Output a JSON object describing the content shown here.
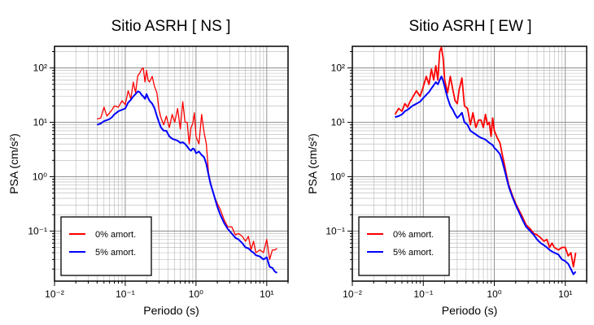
{
  "chart_data": [
    {
      "type": "line",
      "title": "Sitio ASRH [ NS ]",
      "xlabel": "Periodo (s)",
      "ylabel": "PSA (cm/s²)",
      "x_scale": "log",
      "y_scale": "log",
      "xlim": [
        0.01,
        20
      ],
      "ylim": [
        0.012,
        250
      ],
      "grid": true,
      "legend_position": "bottom-left",
      "x_tick_labels": [
        "10⁻²",
        "10⁻¹",
        "10⁰",
        "10¹"
      ],
      "y_tick_labels": [
        "10²",
        "10¹",
        "10⁰",
        "10⁻¹"
      ],
      "series": [
        {
          "name": "0% amort.",
          "color": "#ff0000",
          "x": [
            0.04,
            0.045,
            0.05,
            0.055,
            0.06,
            0.065,
            0.07,
            0.08,
            0.09,
            0.1,
            0.11,
            0.12,
            0.13,
            0.14,
            0.15,
            0.16,
            0.17,
            0.18,
            0.19,
            0.2,
            0.21,
            0.22,
            0.24,
            0.26,
            0.28,
            0.3,
            0.32,
            0.35,
            0.38,
            0.42,
            0.46,
            0.5,
            0.55,
            0.6,
            0.65,
            0.7,
            0.75,
            0.8,
            0.85,
            0.9,
            0.95,
            1.0,
            1.1,
            1.2,
            1.3,
            1.4,
            1.5,
            1.6,
            1.8,
            2.0,
            2.2,
            2.5,
            2.8,
            3.2,
            3.6,
            4.0,
            4.5,
            5.0,
            5.5,
            6.0,
            6.5,
            7.0,
            8.0,
            9.0,
            10.0,
            11.0,
            12.0,
            13.0,
            14.0
          ],
          "y": [
            11.5,
            12,
            19,
            13,
            15,
            17,
            20,
            19,
            25,
            21,
            38,
            27,
            55,
            35,
            72,
            80,
            95,
            100,
            55,
            90,
            60,
            55,
            70,
            45,
            35,
            17,
            12,
            9,
            13,
            8,
            14,
            10,
            18,
            7.5,
            24,
            10,
            10,
            4,
            8,
            9.5,
            15,
            5.5,
            4.0,
            14,
            6.5,
            4.0,
            1.2,
            0.8,
            0.45,
            0.32,
            0.25,
            0.16,
            0.12,
            0.12,
            0.085,
            0.09,
            0.08,
            0.065,
            0.08,
            0.045,
            0.065,
            0.04,
            0.045,
            0.04,
            0.07,
            0.03,
            0.045,
            0.045,
            0.048
          ]
        },
        {
          "name": "5% amort.",
          "color": "#0000ff",
          "x": [
            0.04,
            0.045,
            0.05,
            0.055,
            0.06,
            0.065,
            0.07,
            0.08,
            0.09,
            0.1,
            0.11,
            0.12,
            0.13,
            0.14,
            0.15,
            0.16,
            0.17,
            0.18,
            0.19,
            0.2,
            0.21,
            0.22,
            0.24,
            0.26,
            0.28,
            0.3,
            0.32,
            0.35,
            0.38,
            0.42,
            0.46,
            0.5,
            0.55,
            0.6,
            0.65,
            0.7,
            0.75,
            0.8,
            0.85,
            0.9,
            0.95,
            1.0,
            1.1,
            1.2,
            1.3,
            1.4,
            1.5,
            1.6,
            1.8,
            2.0,
            2.2,
            2.5,
            2.8,
            3.2,
            3.6,
            4.0,
            4.5,
            5.0,
            5.5,
            6.0,
            6.5,
            7.0,
            8.0,
            9.0,
            10.0,
            11.0,
            12.0,
            13.0,
            14.0
          ],
          "y": [
            9,
            9.5,
            10.5,
            11,
            11.5,
            12.5,
            14,
            16,
            17,
            18,
            23,
            26,
            30,
            33,
            37,
            36,
            32,
            30,
            27,
            33,
            28,
            25,
            22,
            18,
            13,
            10,
            8,
            7,
            7,
            5.5,
            5,
            4.8,
            4.6,
            4.2,
            4.3,
            4.0,
            3.6,
            3.2,
            3.0,
            3.3,
            3.2,
            2.7,
            2.9,
            2.5,
            2.3,
            1.7,
            1.1,
            0.75,
            0.45,
            0.28,
            0.2,
            0.14,
            0.11,
            0.09,
            0.075,
            0.07,
            0.06,
            0.05,
            0.048,
            0.043,
            0.04,
            0.036,
            0.034,
            0.03,
            0.033,
            0.022,
            0.021,
            0.018,
            0.017
          ]
        }
      ]
    },
    {
      "type": "line",
      "title": "Sitio ASRH [ EW ]",
      "xlabel": "Periodo (s)",
      "ylabel": "PSA (cm/s²)",
      "x_scale": "log",
      "y_scale": "log",
      "xlim": [
        0.01,
        20
      ],
      "ylim": [
        0.012,
        250
      ],
      "grid": true,
      "legend_position": "bottom-left",
      "x_tick_labels": [
        "10⁻²",
        "10⁻¹",
        "10⁰",
        "10¹"
      ],
      "y_tick_labels": [
        "10²",
        "10¹",
        "10⁰",
        "10⁻¹"
      ],
      "series": [
        {
          "name": "0% amort.",
          "color": "#ff0000",
          "x": [
            0.04,
            0.045,
            0.05,
            0.055,
            0.06,
            0.065,
            0.07,
            0.08,
            0.09,
            0.1,
            0.11,
            0.12,
            0.13,
            0.14,
            0.15,
            0.16,
            0.17,
            0.18,
            0.19,
            0.2,
            0.21,
            0.22,
            0.24,
            0.26,
            0.28,
            0.3,
            0.32,
            0.35,
            0.38,
            0.42,
            0.46,
            0.5,
            0.55,
            0.6,
            0.65,
            0.7,
            0.75,
            0.8,
            0.85,
            0.9,
            0.95,
            1.0,
            1.1,
            1.2,
            1.3,
            1.4,
            1.5,
            1.6,
            1.8,
            2.0,
            2.2,
            2.5,
            2.8,
            3.2,
            3.6,
            4.0,
            4.5,
            5.0,
            5.5,
            6.0,
            6.5,
            7.0,
            8.0,
            9.0,
            10.0,
            11.0,
            12.0,
            13.0,
            14.0
          ],
          "y": [
            14,
            18,
            16,
            22,
            19,
            24,
            28,
            38,
            30,
            45,
            70,
            50,
            95,
            60,
            110,
            60,
            200,
            240,
            150,
            60,
            45,
            35,
            70,
            40,
            25,
            22,
            40,
            65,
            20,
            18,
            9,
            15,
            8,
            11,
            11,
            8,
            14,
            9,
            10,
            5.5,
            12,
            7,
            5.2,
            4.2,
            2.5,
            1.6,
            1.0,
            0.7,
            0.45,
            0.32,
            0.25,
            0.18,
            0.13,
            0.11,
            0.09,
            0.085,
            0.075,
            0.065,
            0.07,
            0.05,
            0.06,
            0.05,
            0.045,
            0.05,
            0.05,
            0.035,
            0.04,
            0.022,
            0.04
          ]
        },
        {
          "name": "5% amort.",
          "color": "#0000ff",
          "x": [
            0.04,
            0.045,
            0.05,
            0.055,
            0.06,
            0.065,
            0.07,
            0.08,
            0.09,
            0.1,
            0.11,
            0.12,
            0.13,
            0.14,
            0.15,
            0.16,
            0.17,
            0.18,
            0.19,
            0.2,
            0.21,
            0.22,
            0.24,
            0.26,
            0.28,
            0.3,
            0.32,
            0.35,
            0.38,
            0.42,
            0.46,
            0.5,
            0.55,
            0.6,
            0.65,
            0.7,
            0.75,
            0.8,
            0.85,
            0.9,
            0.95,
            1.0,
            1.1,
            1.2,
            1.3,
            1.4,
            1.5,
            1.6,
            1.8,
            2.0,
            2.2,
            2.5,
            2.8,
            3.2,
            3.6,
            4.0,
            4.5,
            5.0,
            5.5,
            6.0,
            6.5,
            7.0,
            8.0,
            9.0,
            10.0,
            11.0,
            12.0,
            13.0,
            14.0
          ],
          "y": [
            12.5,
            13,
            14,
            16,
            17,
            18.5,
            20,
            22,
            24,
            28,
            32,
            36,
            42,
            48,
            55,
            50,
            60,
            70,
            58,
            45,
            35,
            28,
            20,
            17,
            14,
            12,
            13,
            15,
            10,
            9,
            7,
            6.5,
            6,
            5.5,
            5.2,
            5,
            4.8,
            4.5,
            4.2,
            4.0,
            3.8,
            3.4,
            3.0,
            2.6,
            1.9,
            1.3,
            0.9,
            0.65,
            0.42,
            0.3,
            0.23,
            0.16,
            0.12,
            0.1,
            0.085,
            0.07,
            0.06,
            0.055,
            0.05,
            0.045,
            0.042,
            0.04,
            0.037,
            0.03,
            0.028,
            0.025,
            0.02,
            0.016,
            0.018
          ]
        }
      ]
    }
  ]
}
